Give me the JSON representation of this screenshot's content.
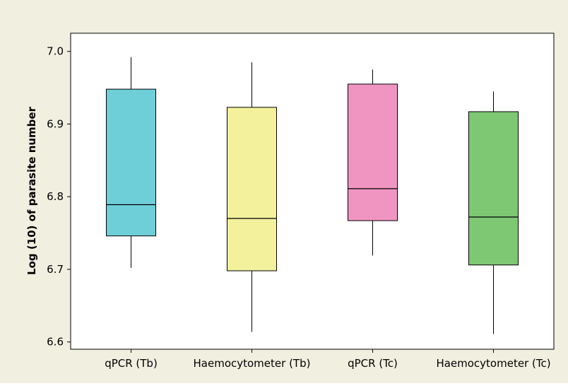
{
  "chart_data": {
    "type": "boxplot",
    "title": "",
    "xlabel": "",
    "ylabel": "Log (10) of parasite number",
    "ylim": [
      6.59,
      7.025
    ],
    "yticks": [
      "6.6",
      "6.7",
      "6.8",
      "6.9",
      "7.0"
    ],
    "grid": false,
    "legend": "none",
    "categories": [
      "qPCR (Tb)",
      "Haemocytometer (Tb)",
      "qPCR (Tc)",
      "Haemocytometer (Tc)"
    ],
    "boxes": [
      {
        "category": "qPCR (Tb)",
        "whisker_low": 6.702,
        "q1": 6.746,
        "median": 6.789,
        "q3": 6.948,
        "whisker_high": 6.992,
        "color": "#6fcfd9"
      },
      {
        "category": "Haemocytometer (Tb)",
        "whisker_low": 6.614,
        "q1": 6.698,
        "median": 6.77,
        "q3": 6.923,
        "whisker_high": 6.985,
        "color": "#f3f19c"
      },
      {
        "category": "qPCR (Tc)",
        "whisker_low": 6.719,
        "q1": 6.767,
        "median": 6.811,
        "q3": 6.955,
        "whisker_high": 6.975,
        "color": "#f095c2"
      },
      {
        "category": "Haemocytometer (Tc)",
        "whisker_low": 6.611,
        "q1": 6.706,
        "median": 6.772,
        "q3": 6.917,
        "whisker_high": 6.945,
        "color": "#7ec874"
      }
    ],
    "colors": {
      "frame_bg": "#f1efe0",
      "plot_bg": "#ffffff",
      "line": "#000000"
    }
  }
}
